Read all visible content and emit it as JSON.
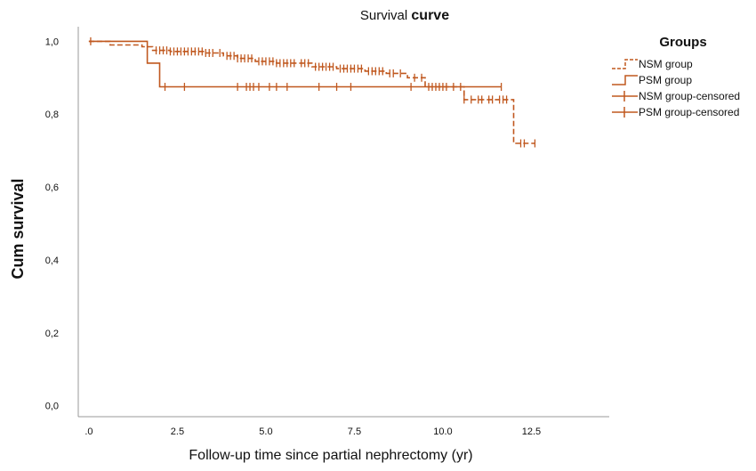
{
  "chart_data": {
    "type": "line",
    "subtype": "step (Kaplan-Meier)",
    "title_part1": "Survival ",
    "title_part2": "curve",
    "xlabel": "Follow-up time since partial nephrectomy (yr)",
    "ylabel": "Cum survival",
    "xlim": [
      -0.3,
      14.7
    ],
    "ylim": [
      -0.03,
      1.04
    ],
    "x_ticks": [
      0,
      2.5,
      5,
      7.5,
      10,
      12.5
    ],
    "x_tick_labels": [
      ".0",
      "2.5",
      "5.0",
      "7.5",
      "10.0",
      "12.5"
    ],
    "y_ticks": [
      0,
      0.2,
      0.4,
      0.6,
      0.8,
      1.0
    ],
    "y_tick_labels": [
      "0,0",
      "0,2",
      "0,4",
      "0,6",
      "0,8",
      "1,0"
    ],
    "grid": false,
    "line_color": "#c0581f",
    "legend": {
      "title": "Groups",
      "position": "top-right outside",
      "entries": [
        "NSM group",
        "PSM group",
        "NSM group-censored",
        "PSM group-censored"
      ]
    },
    "series": [
      {
        "name": "NSM group",
        "style": "dashed",
        "steps": [
          [
            0,
            1.0
          ],
          [
            0.6,
            0.99
          ],
          [
            1.5,
            0.985
          ],
          [
            1.8,
            0.975
          ],
          [
            2.3,
            0.972
          ],
          [
            3.3,
            0.968
          ],
          [
            3.8,
            0.96
          ],
          [
            4.2,
            0.953
          ],
          [
            4.7,
            0.945
          ],
          [
            5.3,
            0.94
          ],
          [
            6.3,
            0.93
          ],
          [
            7.0,
            0.925
          ],
          [
            7.8,
            0.918
          ],
          [
            8.4,
            0.912
          ],
          [
            9.0,
            0.9
          ],
          [
            9.5,
            0.875
          ],
          [
            10.6,
            0.84
          ],
          [
            12.0,
            0.72
          ],
          [
            12.6,
            0.72
          ]
        ],
        "censored": [
          0.05,
          1.9,
          2.0,
          2.1,
          2.2,
          2.3,
          2.4,
          2.5,
          2.6,
          2.7,
          2.8,
          2.9,
          3.0,
          3.1,
          3.2,
          3.3,
          3.4,
          3.5,
          3.7,
          3.9,
          4.0,
          4.1,
          4.2,
          4.3,
          4.4,
          4.5,
          4.6,
          4.8,
          4.9,
          5.0,
          5.1,
          5.2,
          5.3,
          5.4,
          5.5,
          5.6,
          5.7,
          5.8,
          6.0,
          6.1,
          6.2,
          6.4,
          6.5,
          6.6,
          6.7,
          6.8,
          6.9,
          7.1,
          7.2,
          7.3,
          7.4,
          7.5,
          7.6,
          7.7,
          7.9,
          8.0,
          8.1,
          8.2,
          8.3,
          8.5,
          8.6,
          8.8,
          9.2,
          9.4,
          9.6,
          9.7,
          9.8,
          9.9,
          10.0,
          10.1,
          10.3,
          10.5,
          10.6,
          10.8,
          11.0,
          11.1,
          11.3,
          11.4,
          11.6,
          11.7,
          11.8,
          12.2,
          12.3,
          12.6
        ]
      },
      {
        "name": "PSM group",
        "style": "solid",
        "steps": [
          [
            0,
            1.0
          ],
          [
            1.65,
            0.94
          ],
          [
            2.0,
            0.875
          ],
          [
            11.65,
            0.875
          ]
        ],
        "censored": [
          2.15,
          2.7,
          4.2,
          4.45,
          4.55,
          4.65,
          4.8,
          5.1,
          5.3,
          5.6,
          6.5,
          7.0,
          7.4,
          9.1,
          11.65
        ]
      }
    ]
  }
}
